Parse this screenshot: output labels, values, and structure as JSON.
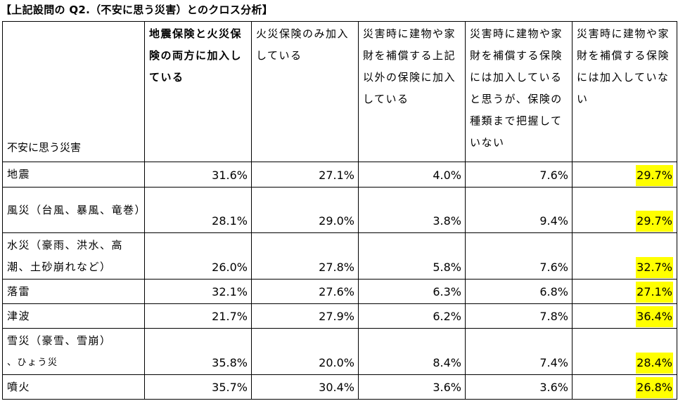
{
  "title": "【上記設問の Q2.（不安に思う災害）とのクロス分析】",
  "corner_label": "不安に思う災害",
  "columns": [
    "地震保険と火災保険の両方に加入している",
    "火災保険のみ加入している",
    "災害時に建物や家財を補償する上記以外の保険に加入している",
    "災害時に建物や家財を補償する保険には加入していると思うが、保険の種類まで把握していない",
    "災害時に建物や家財を補償する保険には加入していない"
  ],
  "rows": [
    {
      "label": "地震",
      "values": [
        "31.6%",
        "27.1%",
        "4.0%",
        "7.6%",
        "29.7%"
      ]
    },
    {
      "label": "風災（台風、暴風、竜巻）",
      "values": [
        "28.1%",
        "29.0%",
        "3.8%",
        "9.4%",
        "29.7%"
      ]
    },
    {
      "label": "水災（豪雨、洪水、高潮、土砂崩れなど）",
      "values": [
        "26.0%",
        "27.8%",
        "5.8%",
        "7.6%",
        "32.7%"
      ]
    },
    {
      "label": "落雷",
      "values": [
        "32.1%",
        "27.6%",
        "6.3%",
        "6.8%",
        "27.1%"
      ]
    },
    {
      "label": "津波",
      "values": [
        "21.7%",
        "27.9%",
        "6.2%",
        "7.8%",
        "36.4%"
      ]
    },
    {
      "label": "雪災（豪雪、雪崩）",
      "label_small": "、ひょう災",
      "values": [
        "35.8%",
        "20.0%",
        "8.4%",
        "7.4%",
        "28.4%"
      ]
    },
    {
      "label": "噴火",
      "values": [
        "35.7%",
        "30.4%",
        "3.6%",
        "3.6%",
        "26.8%"
      ]
    }
  ],
  "highlight_color": "#ffff00"
}
